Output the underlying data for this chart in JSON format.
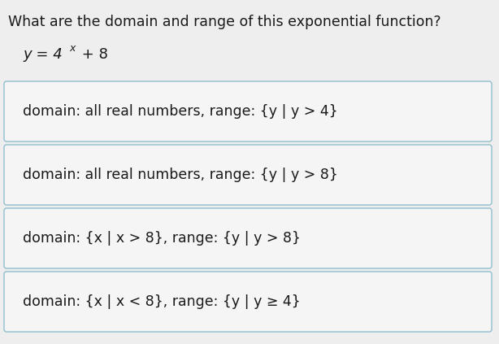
{
  "title": "What are the domain and range of this exponential function?",
  "background_color": "#eeeeee",
  "box_background": "#f5f5f5",
  "box_border_color": "#90bece",
  "text_color": "#1a1a1a",
  "title_fontsize": 12.5,
  "eq_fontsize": 13.0,
  "option_fontsize": 12.5,
  "options": [
    "domain: all real numbers, range: {y | y > 4}",
    "domain: all real numbers, range: {y | y > 8}",
    "domain: {x | x > 8}, range: {y | y > 8}",
    "domain: {x | x < 8}, range: {y | y ≥ 4}"
  ]
}
